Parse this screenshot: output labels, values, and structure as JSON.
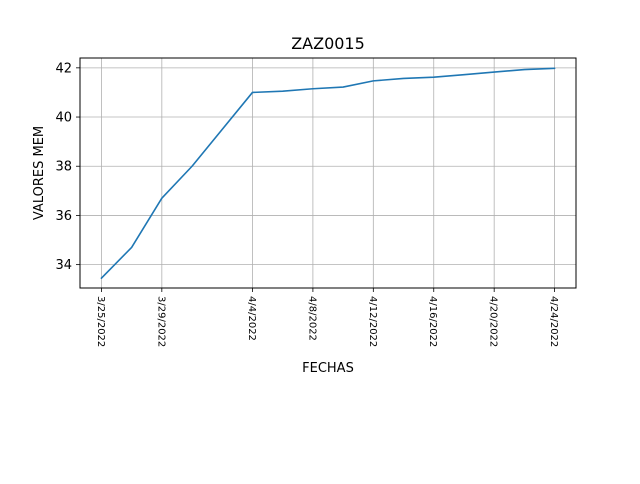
{
  "chart_data": {
    "type": "line",
    "title": "ZAZ0015",
    "xlabel": "FECHAS",
    "ylabel": "VALORES MEM",
    "x_ticks": [
      "3/25/2022",
      "3/29/2022",
      "4/4/2022",
      "4/8/2022",
      "4/12/2022",
      "4/16/2022",
      "4/20/2022",
      "4/24/2022"
    ],
    "y_ticks": [
      34,
      36,
      38,
      40,
      42
    ],
    "xlim": [
      "2022-03-23T14:00",
      "2022-04-25T10:00"
    ],
    "ylim": [
      33.05,
      42.4
    ],
    "grid": true,
    "legend": "none",
    "series": [
      {
        "color": "#1f77b4",
        "x": [
          "2022-03-25",
          "2022-03-27",
          "2022-03-29",
          "2022-03-31",
          "2022-04-04",
          "2022-04-06",
          "2022-04-08",
          "2022-04-10",
          "2022-04-12",
          "2022-04-14",
          "2022-04-16",
          "2022-04-18",
          "2022-04-20",
          "2022-04-22",
          "2022-04-24"
        ],
        "y": [
          33.45,
          34.7,
          36.7,
          38.0,
          41.0,
          41.05,
          41.15,
          41.22,
          41.47,
          41.57,
          41.62,
          41.72,
          41.83,
          41.93,
          41.98
        ]
      }
    ]
  }
}
